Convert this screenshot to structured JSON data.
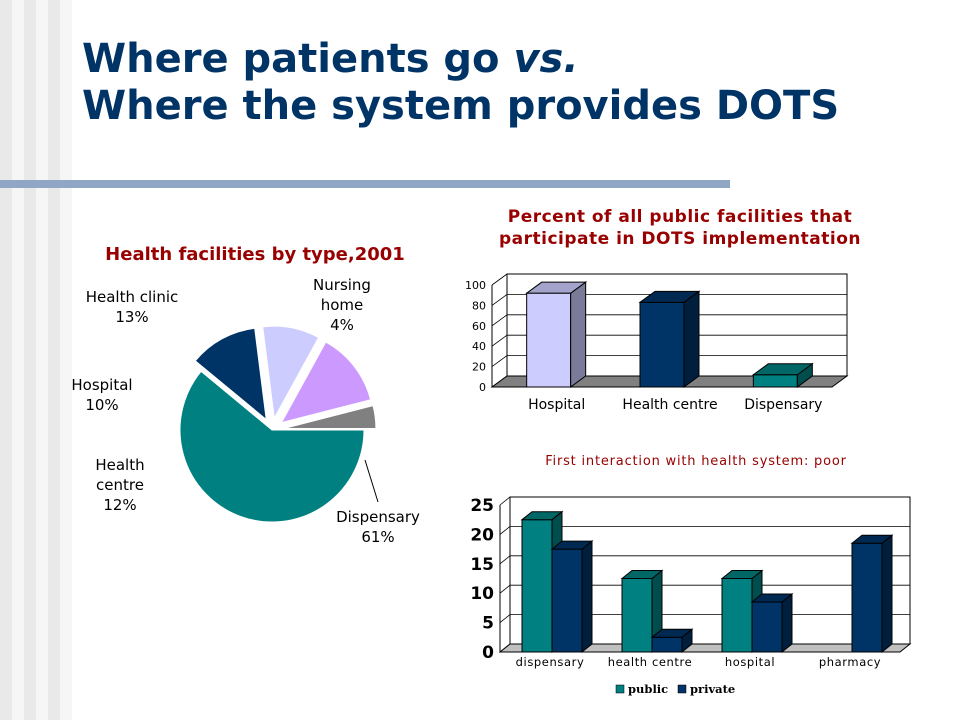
{
  "slide": {
    "title_line1_plain": "Where patients go ",
    "title_line1_italic": "vs.",
    "title_line2": "Where the system provides DOTS"
  },
  "colors": {
    "title": "#003366",
    "pie_title": "#990000",
    "dots_title": "#990000",
    "dispensary": "#008080",
    "health_centre": "#003366",
    "hospital": "#ccccff",
    "health_clinic": "#cc99ff",
    "nursing_home": "#808080",
    "public": "#008080",
    "private": "#003366"
  },
  "chart_data": [
    {
      "type": "pie",
      "title": "Health facilities by type,2001",
      "slices": [
        {
          "name": "Dispensary",
          "value": 61,
          "label_lines": [
            "Dispensary",
            "61%"
          ]
        },
        {
          "name": "Health centre",
          "value": 12,
          "label_lines": [
            "Health",
            "centre",
            "12%"
          ]
        },
        {
          "name": "Hospital",
          "value": 10,
          "label_lines": [
            "Hospital",
            "10%"
          ]
        },
        {
          "name": "Health clinic",
          "value": 13,
          "label_lines": [
            "Health clinic",
            "13%"
          ]
        },
        {
          "name": "Nursing home",
          "value": 4,
          "label_lines": [
            "Nursing",
            "home",
            "4%"
          ]
        }
      ]
    },
    {
      "type": "bar",
      "title_lines": [
        "Percent of all public facilities that",
        "participate in DOTS implementation"
      ],
      "categories": [
        "Hospital",
        "Health centre",
        "Dispensary"
      ],
      "values": [
        92,
        83,
        12
      ],
      "ylim": [
        0,
        100
      ],
      "yticks": [
        "0",
        "20",
        "40",
        "60",
        "80",
        "100"
      ],
      "xlabel": "",
      "ylabel": ""
    },
    {
      "type": "bar",
      "title": "First interaction with health system: poor",
      "categories": [
        "dispensary",
        "health centre",
        "hospital",
        "pharmacy"
      ],
      "series": [
        {
          "name": "public",
          "values": [
            22.5,
            12.5,
            12.5,
            0
          ]
        },
        {
          "name": "private",
          "values": [
            17.5,
            2.5,
            8.5,
            18.5
          ]
        }
      ],
      "ylim": [
        0,
        25
      ],
      "yticks": [
        "0",
        "5",
        "10",
        "15",
        "20",
        "25"
      ],
      "legend": "bottom",
      "xlabel": "",
      "ylabel": ""
    }
  ]
}
